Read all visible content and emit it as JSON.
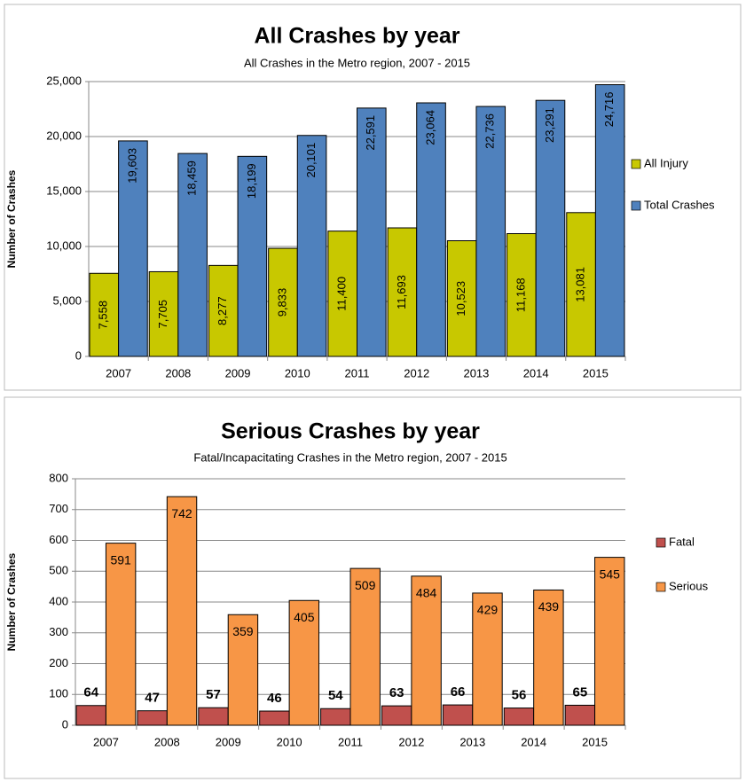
{
  "chart_data": [
    {
      "type": "bar",
      "title": "All Crashes by year",
      "subtitle": "All Crashes in the Metro region, 2007 - 2015",
      "y_label": "Number of Crashes",
      "categories": [
        "2007",
        "2008",
        "2009",
        "2010",
        "2011",
        "2012",
        "2013",
        "2014",
        "2015"
      ],
      "series": [
        {
          "name": "All Injury",
          "color": "#c8c800",
          "values": [
            7558,
            7705,
            8277,
            9833,
            11400,
            11693,
            10523,
            11168,
            13081
          ],
          "value_labels": [
            "7,558",
            "7,705",
            "8,277",
            "9,833",
            "11,400",
            "11,693",
            "10,523",
            "11,168",
            "13,081"
          ]
        },
        {
          "name": "Total Crashes",
          "color": "#4f81bd",
          "values": [
            19603,
            18459,
            18199,
            20101,
            22591,
            23064,
            22736,
            23291,
            24716
          ],
          "value_labels": [
            "19,603",
            "18,459",
            "18,199",
            "20,101",
            "22,591",
            "23,064",
            "22,736",
            "23,291",
            "24,716"
          ]
        }
      ],
      "ylim": [
        0,
        25000
      ],
      "yticks": [
        0,
        {
          "value": 5000,
          "label": "5,000"
        },
        {
          "value": 10000,
          "label": "10,000"
        },
        {
          "value": 15000,
          "label": "15,000"
        },
        {
          "value": 20000,
          "label": "20,000"
        },
        {
          "value": 25000,
          "label": "25,000"
        }
      ],
      "grid": true,
      "legend": "right"
    },
    {
      "type": "bar",
      "title": "Serious Crashes by year",
      "subtitle": "Fatal/Incapacitating Crashes in the Metro region, 2007 - 2015",
      "y_label": "Number of Crashes",
      "categories": [
        "2007",
        "2008",
        "2009",
        "2010",
        "2011",
        "2012",
        "2013",
        "2014",
        "2015"
      ],
      "series": [
        {
          "name": "Fatal",
          "color": "#c0504d",
          "values": [
            64,
            47,
            57,
            46,
            54,
            63,
            66,
            56,
            65
          ]
        },
        {
          "name": "Serious",
          "color": "#f79646",
          "values": [
            591,
            742,
            359,
            405,
            509,
            484,
            429,
            439,
            545
          ]
        }
      ],
      "ylim": [
        0,
        800
      ],
      "yticks": [
        0,
        100,
        200,
        300,
        400,
        500,
        600,
        700,
        800
      ],
      "grid": true,
      "legend": "right"
    }
  ]
}
